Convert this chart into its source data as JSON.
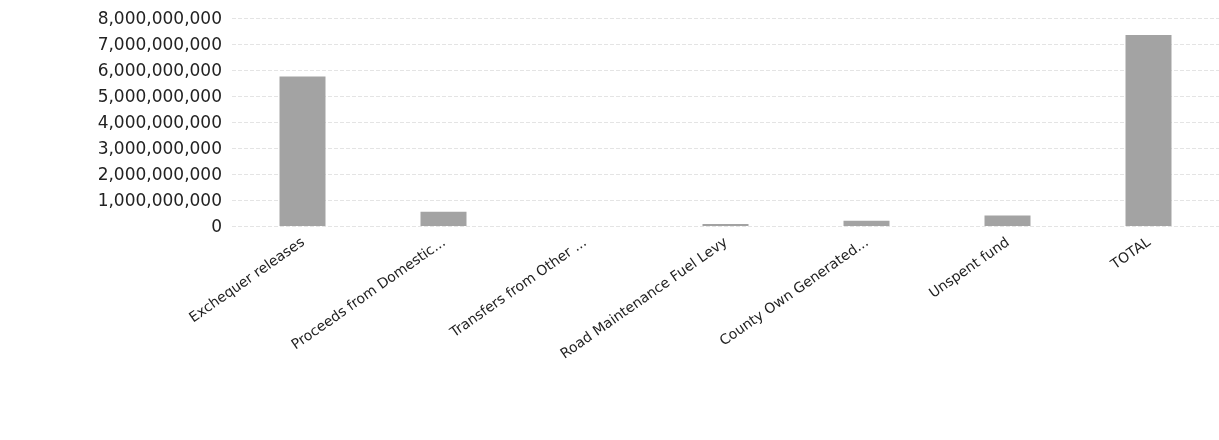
{
  "chart_data": {
    "type": "bar",
    "categories": [
      "Exchequer releases",
      "Proceeds from Domestic...",
      "Transfers from Other ...",
      "Road Maintenance Fuel Levy",
      "County Own Generated...",
      "Unspent fund",
      "TOTAL"
    ],
    "values": [
      5750000000,
      550000000,
      0,
      80000000,
      200000000,
      400000000,
      7350000000
    ],
    "color": "#a3a3a3",
    "ylim": [
      0,
      8000000000
    ],
    "yticks": [
      0,
      {
        "value": 1000000000,
        "label": "1,000,000,000"
      },
      {
        "value": 2000000000,
        "label": "2,000,000,000"
      },
      {
        "value": 3000000000,
        "label": "3,000,000,000"
      },
      {
        "value": 4000000000,
        "label": "4,000,000,000"
      },
      {
        "value": 5000000000,
        "label": "5,000,000,000"
      },
      {
        "value": 6000000000,
        "label": "6,000,000,000"
      },
      {
        "value": 7000000000,
        "label": "7,000,000,000"
      },
      {
        "value": 8000000000,
        "label": "8,000,000,000"
      }
    ],
    "grid": "y"
  }
}
